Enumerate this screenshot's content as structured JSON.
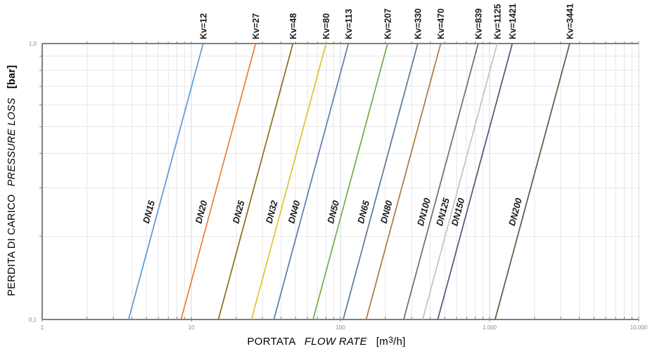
{
  "chart_data": {
    "type": "line",
    "scale": "log-log",
    "description": "Valve pressure loss vs flow rate characteristic lines for nominal diameters DN15-DN200, each labeled with its Kv coefficient",
    "x_axis": {
      "label_primary": "PORTATA",
      "label_secondary": "FLOW RATE",
      "unit_pre": "[m",
      "unit_sup": "3",
      "unit_post": "/h]",
      "lim": [
        1,
        10000
      ],
      "ticks": [
        {
          "value": 1,
          "label": "1"
        },
        {
          "value": 10,
          "label": "10"
        },
        {
          "value": 100,
          "label": "100"
        },
        {
          "value": 1000,
          "label": "1.000"
        },
        {
          "value": 10000,
          "label": "10.000"
        }
      ]
    },
    "y_axis": {
      "label_primary": "PERDITA DI CARICO",
      "label_secondary": "PRESSURE LOSS",
      "unit": "[bar]",
      "lim": [
        0.1,
        1.0
      ],
      "ticks": [
        {
          "value": 1.0,
          "label": "1,0"
        },
        {
          "value": 0.1,
          "label": "0,1"
        }
      ]
    },
    "series": [
      {
        "dn": "DN15",
        "kv": 12,
        "kv_label": "Kv=12",
        "color": "#5B9BD5"
      },
      {
        "dn": "DN20",
        "kv": 27,
        "kv_label": "Kv=27",
        "color": "#ED7D31"
      },
      {
        "dn": "DN25",
        "kv": 48,
        "kv_label": "Kv=48",
        "color": "#8A6D1E"
      },
      {
        "dn": "DN32",
        "kv": 80,
        "kv_label": "Kv=80",
        "color": "#DFC32F"
      },
      {
        "dn": "DN40",
        "kv": 113,
        "kv_label": "Kv=113",
        "color": "#5B7AB5"
      },
      {
        "dn": "DN50",
        "kv": 207,
        "kv_label": "Kv=207",
        "color": "#70AD47"
      },
      {
        "dn": "DN65",
        "kv": 330,
        "kv_label": "Kv=330",
        "color": "#5D7895"
      },
      {
        "dn": "DN80",
        "kv": 470,
        "kv_label": "Kv=470",
        "color": "#AE7840"
      },
      {
        "dn": "DN100",
        "kv": 839,
        "kv_label": "Kv=839",
        "color": "#6E6E6E"
      },
      {
        "dn": "DN125",
        "kv": 1125,
        "kv_label": "Kv=1125",
        "color": "#C3C3C3"
      },
      {
        "dn": "DN150",
        "kv": 1421,
        "kv_label": "Kv=1421",
        "color": "#475A74"
      },
      {
        "dn": "DN200",
        "kv": 3441,
        "kv_label": "Kv=3441",
        "color": "#4F6140"
      }
    ],
    "style": {
      "grid_minor_color": "#e7e7eb",
      "grid_major_color": "#d7d7dc",
      "axis_color": "#7f7f7f",
      "tick_label_color": "#8a8a8a",
      "label_color": "#1a1a1a"
    },
    "legend": "none",
    "grid": "on"
  }
}
